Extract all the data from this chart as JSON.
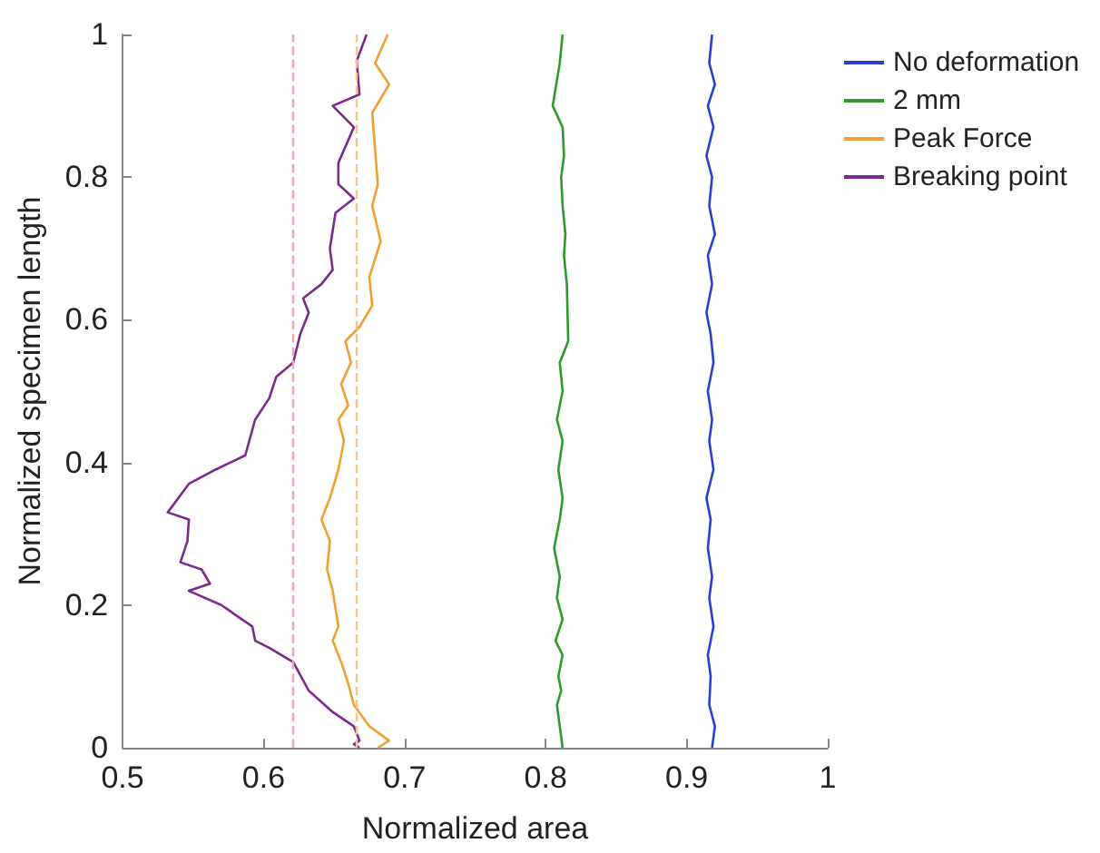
{
  "chart_data": {
    "type": "line",
    "xlabel": "Normalized area",
    "ylabel": "Normalized specimen length",
    "xlim": [
      0.5,
      1
    ],
    "xticks": [
      0.5,
      0.6,
      0.7,
      0.8,
      0.9,
      1
    ],
    "ylim": [
      0,
      1
    ],
    "yticks": [
      0,
      0.2,
      0.4,
      0.6,
      0.8,
      1
    ],
    "grid": false,
    "legend": "top right",
    "marker": "none",
    "line_style": "solid",
    "ref_lines": [
      {
        "axis": "x",
        "value": 0.62,
        "color": "#f2a0b4",
        "line_style": "dashed"
      },
      {
        "axis": "x",
        "value": 0.666,
        "color": "#f5c48a",
        "line_style": "dashed"
      }
    ],
    "series": [
      {
        "name": "No deformation",
        "color": "#2a3fd6",
        "x": [
          0.918,
          0.916,
          0.92,
          0.915,
          0.919,
          0.914,
          0.918,
          0.916,
          0.92,
          0.915,
          0.918,
          0.914,
          0.917,
          0.919,
          0.915,
          0.918,
          0.916,
          0.919,
          0.914,
          0.917,
          0.915,
          0.918,
          0.916,
          0.919,
          0.915,
          0.917,
          0.916,
          0.92,
          0.918
        ],
        "values": [
          1,
          0.96,
          0.93,
          0.9,
          0.87,
          0.83,
          0.8,
          0.76,
          0.72,
          0.69,
          0.65,
          0.61,
          0.58,
          0.54,
          0.5,
          0.46,
          0.43,
          0.39,
          0.35,
          0.32,
          0.28,
          0.24,
          0.21,
          0.17,
          0.13,
          0.1,
          0.06,
          0.03,
          0
        ]
      },
      {
        "name": "2 mm",
        "color": "#2e9a2e",
        "x": [
          0.812,
          0.81,
          0.805,
          0.812,
          0.813,
          0.811,
          0.812,
          0.814,
          0.813,
          0.815,
          0.816,
          0.81,
          0.812,
          0.808,
          0.812,
          0.809,
          0.812,
          0.81,
          0.806,
          0.81,
          0.808,
          0.812,
          0.807,
          0.812,
          0.809,
          0.811,
          0.808,
          0.81,
          0.812
        ],
        "values": [
          1,
          0.96,
          0.9,
          0.87,
          0.83,
          0.8,
          0.76,
          0.72,
          0.69,
          0.65,
          0.57,
          0.54,
          0.5,
          0.46,
          0.43,
          0.39,
          0.35,
          0.32,
          0.28,
          0.24,
          0.21,
          0.18,
          0.15,
          0.13,
          0.1,
          0.08,
          0.06,
          0.03,
          0
        ]
      },
      {
        "name": "Peak Force",
        "color": "#f0a030",
        "x": [
          0.688,
          0.679,
          0.689,
          0.677,
          0.679,
          0.681,
          0.677,
          0.683,
          0.675,
          0.677,
          0.668,
          0.658,
          0.662,
          0.655,
          0.66,
          0.653,
          0.657,
          0.653,
          0.647,
          0.641,
          0.647,
          0.645,
          0.649,
          0.653,
          0.649,
          0.655,
          0.66,
          0.664,
          0.675,
          0.689,
          0.681
        ],
        "values": [
          1,
          0.96,
          0.93,
          0.89,
          0.84,
          0.79,
          0.76,
          0.71,
          0.66,
          0.62,
          0.59,
          0.57,
          0.54,
          0.51,
          0.48,
          0.46,
          0.43,
          0.39,
          0.35,
          0.32,
          0.29,
          0.25,
          0.22,
          0.17,
          0.15,
          0.12,
          0.09,
          0.06,
          0.03,
          0.01,
          0
        ]
      },
      {
        "name": "Breaking point",
        "color": "#7a2a8c",
        "x": [
          0.673,
          0.666,
          0.668,
          0.649,
          0.664,
          0.653,
          0.653,
          0.664,
          0.651,
          0.647,
          0.649,
          0.641,
          0.628,
          0.632,
          0.626,
          0.621,
          0.609,
          0.604,
          0.594,
          0.587,
          0.566,
          0.547,
          0.532,
          0.547,
          0.546,
          0.541,
          0.556,
          0.562,
          0.547,
          0.57,
          0.592,
          0.594,
          0.604,
          0.621,
          0.632,
          0.649,
          0.664,
          0.668,
          0.664,
          0.668
        ],
        "values": [
          1,
          0.963,
          0.916,
          0.9,
          0.87,
          0.82,
          0.79,
          0.77,
          0.75,
          0.7,
          0.67,
          0.65,
          0.63,
          0.61,
          0.58,
          0.54,
          0.52,
          0.49,
          0.46,
          0.41,
          0.39,
          0.37,
          0.33,
          0.32,
          0.29,
          0.26,
          0.25,
          0.23,
          0.22,
          0.2,
          0.17,
          0.15,
          0.14,
          0.12,
          0.08,
          0.05,
          0.03,
          0.01,
          0.005,
          0
        ]
      }
    ]
  }
}
